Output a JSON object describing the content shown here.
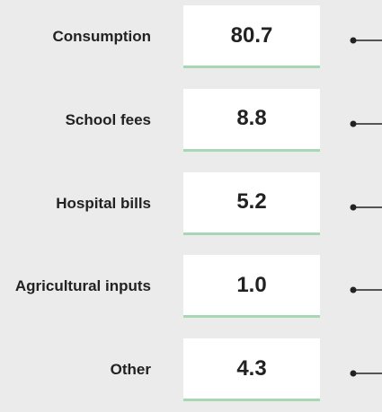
{
  "rows": [
    {
      "label": "Consumption",
      "value": "80.7"
    },
    {
      "label": "School fees",
      "value": "8.8"
    },
    {
      "label": "Hospital bills",
      "value": "5.2"
    },
    {
      "label": "Agricultural inputs",
      "value": "1.0"
    },
    {
      "label": "Other",
      "value": "4.3"
    }
  ]
}
